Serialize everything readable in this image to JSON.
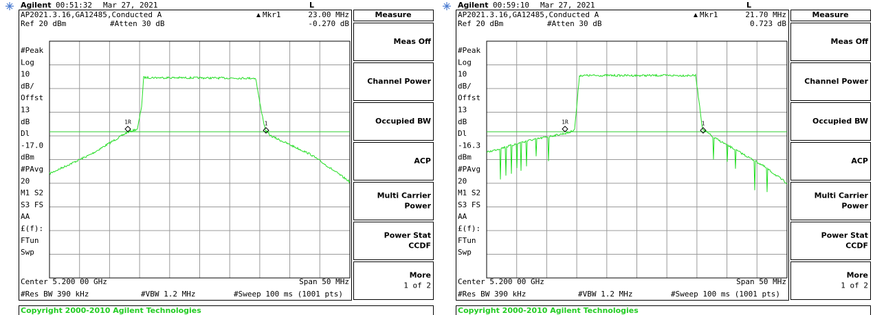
{
  "panels": [
    {
      "status": {
        "brand": "Agilent",
        "time": "00:51:32",
        "date": "Mar 27, 2021",
        "mode": "L"
      },
      "info": "AP2021.3.16,GA12485,Conducted A",
      "marker": "Mkr1",
      "marker_freq": "23.00 MHz",
      "ref": "Ref 20 dBm",
      "atten": "#Atten 30 dB",
      "marker_value": "-0.270 dB",
      "side_labels": [
        "#Peak",
        "Log",
        "10",
        "dB/",
        "Offst",
        "13",
        "dB",
        "Dl",
        "-17.0",
        "dBm",
        "#PAvg",
        "20",
        "M1  S2",
        "S3  FS",
        "AA",
        "£(f):",
        "FTun",
        "Swp"
      ],
      "marker_labels": [
        "1R",
        "1"
      ],
      "center": "Center 5.200 00 GHz",
      "span": "Span 50 MHz",
      "res_bw": "#Res BW 390 kHz",
      "vbw": "#VBW 1.2 MHz",
      "sweep": "#Sweep 100 ms (1001 pts)",
      "copyright": "Copyright 2000-2010 Agilent Technologies",
      "menu_title": "Measure",
      "softkeys": [
        [
          "Meas Off"
        ],
        [
          "Channel Power"
        ],
        [
          "Occupied BW"
        ],
        [
          "ACP"
        ],
        [
          "Multi Carrier",
          "Power"
        ],
        [
          "Power Stat",
          "CCDF"
        ],
        [
          "More",
          "1 of 2"
        ]
      ]
    },
    {
      "status": {
        "brand": "Agilent",
        "time": "00:59:10",
        "date": "Mar 27, 2021",
        "mode": "L"
      },
      "info": "AP2021.3.16,GA12485,Conducted A",
      "marker": "Mkr1",
      "marker_freq": "21.70 MHz",
      "ref": "Ref 20 dBm",
      "atten": "#Atten 30 dB",
      "marker_value": "0.723 dB",
      "side_labels": [
        "#Peak",
        "Log",
        "10",
        "dB/",
        "Offst",
        "13",
        "dB",
        "Dl",
        "-16.3",
        "dBm",
        "#PAvg",
        "20",
        "M1  S2",
        "S3  FS",
        "AA",
        "£(f):",
        "FTun",
        "Swp"
      ],
      "marker_labels": [
        "1R",
        "1"
      ],
      "center": "Center 5.200 00 GHz",
      "span": "Span 50 MHz",
      "res_bw": "#Res BW 390 kHz",
      "vbw": "#VBW 1.2 MHz",
      "sweep": "#Sweep 100 ms (1001 pts)",
      "copyright": "Copyright 2000-2010 Agilent Technologies",
      "menu_title": "Measure",
      "softkeys": [
        [
          "Meas Off"
        ],
        [
          "Channel Power"
        ],
        [
          "Occupied BW"
        ],
        [
          "ACP"
        ],
        [
          "Multi Carrier",
          "Power"
        ],
        [
          "Power Stat",
          "CCDF"
        ],
        [
          "More",
          "1 of 2"
        ]
      ]
    }
  ]
}
